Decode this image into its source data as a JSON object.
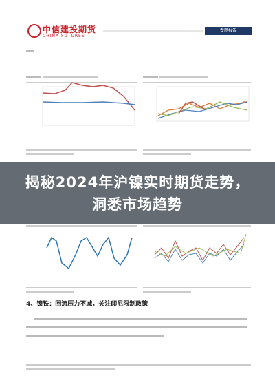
{
  "header": {
    "logo_cn": "中信建投期货",
    "logo_en": "CHINA FUTURES",
    "tag": "专题报告"
  },
  "overlay_title": {
    "lines": [
      "揭秘2024年沪镍实时期货走势，",
      "洞悉市场趋势"
    ]
  },
  "section_heading": "4、镍铁：回流压力不减，关注印尼限制政策"
}
